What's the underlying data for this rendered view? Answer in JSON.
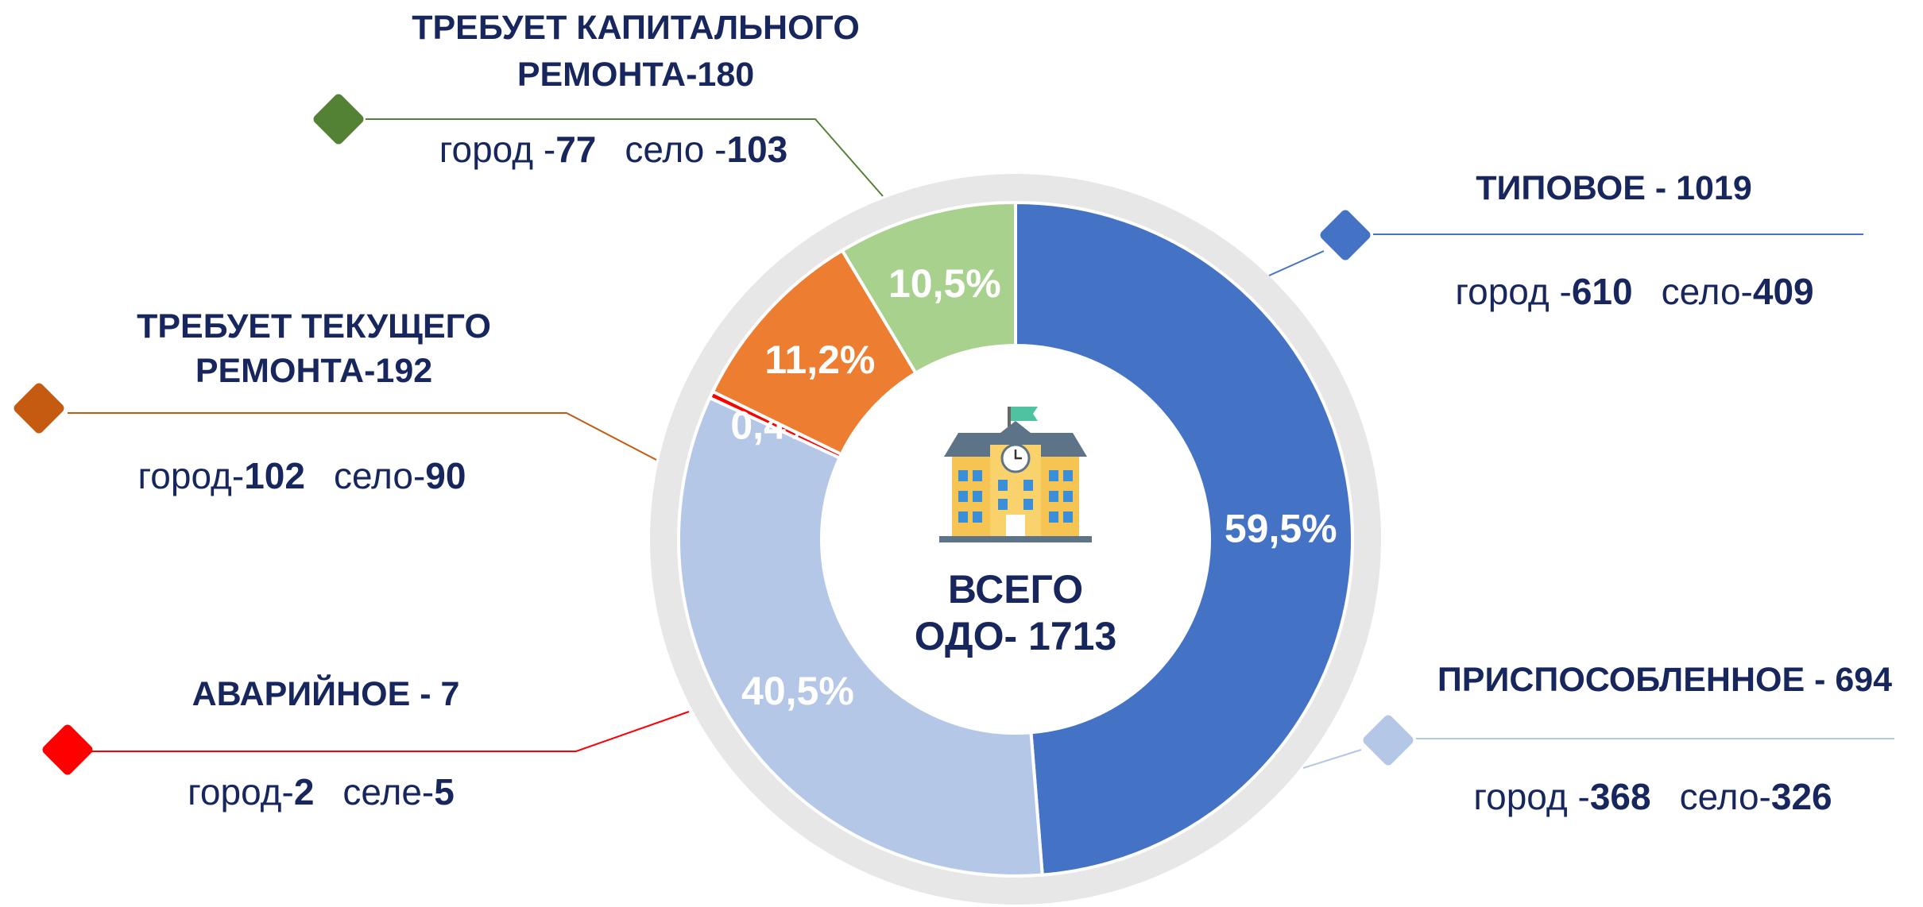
{
  "chart_data": {
    "type": "donut",
    "center_lines": [
      "ВСЕГО",
      "ОДО- 1713"
    ],
    "segments": [
      {
        "title_lines": [
          "ТИПОВОЕ - 1019"
        ],
        "values": 59.5,
        "value_labels": "59,5%",
        "color": "#4472c4",
        "marker_color": "#4472c4",
        "city_label": "город -",
        "city": 610,
        "village_label": "село-",
        "village": 409
      },
      {
        "title_lines": [
          "ПРИСПОСОБЛЕННОЕ - 694"
        ],
        "values": 40.5,
        "value_labels": "40,5%",
        "color": "#b4c7e7",
        "marker_color": "#b4c7e7",
        "city_label": "город -",
        "city": 368,
        "village_label": "село-",
        "village": 326
      },
      {
        "title_lines": [
          "АВАРИЙНОЕ - 7"
        ],
        "values": 0.4,
        "value_labels": "0,4%",
        "color": "#ff0000",
        "marker_color": "#ff0000",
        "city_label": "город-",
        "city": 2,
        "village_label": "селе-",
        "village": 5
      },
      {
        "title_lines": [
          "ТРЕБУЕТ ТЕКУЩЕГО",
          "РЕМОНТА-192"
        ],
        "values": 11.2,
        "value_labels": "11,2%",
        "color": "#ed7d31",
        "marker_color": "#c55a11",
        "city_label": "город-",
        "city": 102,
        "village_label": "село-",
        "village": 90
      },
      {
        "title_lines": [
          "ТРЕБУЕТ КАПИТАЛЬНОГО",
          "РЕМОНТА-180"
        ],
        "values": 10.5,
        "value_labels": "10,5%",
        "color": "#a9d18e",
        "marker_color": "#548235",
        "city_label": "город -",
        "city": 77,
        "village_label": "село -",
        "village": 103
      }
    ]
  }
}
